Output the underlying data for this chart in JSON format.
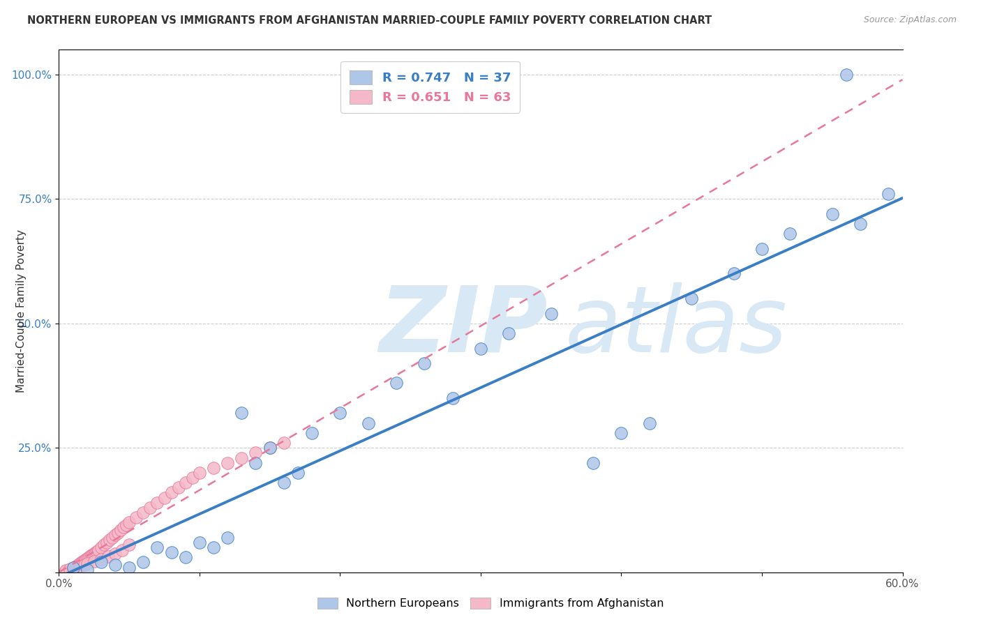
{
  "title": "NORTHERN EUROPEAN VS IMMIGRANTS FROM AFGHANISTAN MARRIED-COUPLE FAMILY POVERTY CORRELATION CHART",
  "source": "Source: ZipAtlas.com",
  "ylabel": "Married-Couple Family Poverty",
  "xlim": [
    0.0,
    0.6
  ],
  "ylim": [
    0.0,
    1.05
  ],
  "xticks": [
    0.0,
    0.1,
    0.2,
    0.3,
    0.4,
    0.5,
    0.6
  ],
  "xtick_labels": [
    "0.0%",
    "",
    "",
    "",
    "",
    "",
    "60.0%"
  ],
  "yticks": [
    0.0,
    0.25,
    0.5,
    0.75,
    1.0
  ],
  "ytick_labels": [
    "",
    "25.0%",
    "50.0%",
    "75.0%",
    "100.0%"
  ],
  "blue_R": 0.747,
  "blue_N": 37,
  "pink_R": 0.651,
  "pink_N": 63,
  "blue_color": "#AEC6E8",
  "pink_color": "#F4B8C8",
  "blue_edge_color": "#3A7EC6",
  "pink_edge_color": "#E8789A",
  "blue_line_color": "#3A7EC6",
  "pink_line_color": "#E8789A",
  "watermark_text": "ZIPatlas",
  "background_color": "#FFFFFF",
  "grid_color": "#CCCCCC",
  "title_color": "#333333",
  "source_color": "#999999",
  "yaxis_color": "#3A7EC6",
  "blue_scatter_x": [
    0.01,
    0.02,
    0.03,
    0.04,
    0.05,
    0.06,
    0.07,
    0.08,
    0.09,
    0.1,
    0.11,
    0.12,
    0.13,
    0.14,
    0.15,
    0.16,
    0.17,
    0.18,
    0.2,
    0.22,
    0.24,
    0.26,
    0.28,
    0.3,
    0.32,
    0.35,
    0.38,
    0.4,
    0.42,
    0.45,
    0.48,
    0.5,
    0.52,
    0.55,
    0.57,
    0.59,
    0.56
  ],
  "blue_scatter_y": [
    0.01,
    0.005,
    0.02,
    0.015,
    0.01,
    0.02,
    0.05,
    0.04,
    0.03,
    0.06,
    0.05,
    0.07,
    0.32,
    0.22,
    0.25,
    0.18,
    0.2,
    0.28,
    0.32,
    0.3,
    0.38,
    0.42,
    0.35,
    0.45,
    0.48,
    0.52,
    0.22,
    0.28,
    0.3,
    0.55,
    0.6,
    0.65,
    0.68,
    0.72,
    0.7,
    0.76,
    1.0
  ],
  "pink_scatter_x": [
    0.005,
    0.007,
    0.008,
    0.009,
    0.01,
    0.011,
    0.012,
    0.013,
    0.014,
    0.015,
    0.016,
    0.017,
    0.018,
    0.019,
    0.02,
    0.021,
    0.022,
    0.023,
    0.024,
    0.025,
    0.026,
    0.027,
    0.028,
    0.03,
    0.032,
    0.034,
    0.036,
    0.038,
    0.04,
    0.042,
    0.044,
    0.046,
    0.048,
    0.05,
    0.055,
    0.06,
    0.065,
    0.07,
    0.075,
    0.08,
    0.085,
    0.09,
    0.095,
    0.1,
    0.11,
    0.12,
    0.13,
    0.14,
    0.15,
    0.16,
    0.005,
    0.008,
    0.01,
    0.012,
    0.015,
    0.018,
    0.02,
    0.025,
    0.03,
    0.035,
    0.04,
    0.045,
    0.05
  ],
  "pink_scatter_y": [
    0.002,
    0.004,
    0.005,
    0.006,
    0.008,
    0.01,
    0.012,
    0.014,
    0.016,
    0.018,
    0.02,
    0.022,
    0.024,
    0.026,
    0.028,
    0.03,
    0.032,
    0.034,
    0.036,
    0.038,
    0.04,
    0.042,
    0.044,
    0.05,
    0.055,
    0.06,
    0.065,
    0.07,
    0.075,
    0.08,
    0.085,
    0.09,
    0.095,
    0.1,
    0.11,
    0.12,
    0.13,
    0.14,
    0.15,
    0.16,
    0.17,
    0.18,
    0.19,
    0.2,
    0.21,
    0.22,
    0.23,
    0.24,
    0.25,
    0.26,
    0.003,
    0.006,
    0.008,
    0.01,
    0.012,
    0.015,
    0.018,
    0.022,
    0.026,
    0.032,
    0.038,
    0.045,
    0.055
  ]
}
